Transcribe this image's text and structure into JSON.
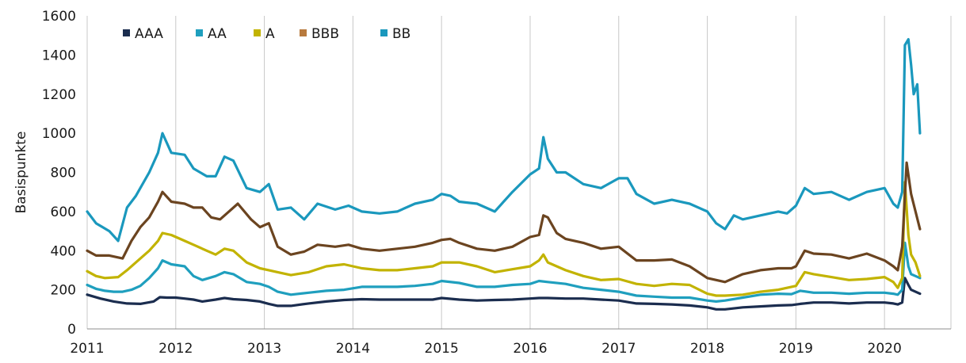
{
  "colors": {
    "AAA": "#1b2d4f",
    "AA": "#1f9fbe",
    "A": "#c2b300",
    "BBB": "#6b4420",
    "BB": "#1a98bd",
    "BBB_legend": "#b87a3d"
  },
  "chart_data": {
    "type": "line",
    "title": "",
    "xlabel": "",
    "ylabel": "Basispunkte",
    "xlim": [
      2011.0,
      2020.75
    ],
    "ylim": [
      0,
      1600
    ],
    "yticks": [
      "0",
      "200",
      "400",
      "600",
      "800",
      "1000",
      "1200",
      "1400",
      "1600"
    ],
    "xticks": [
      "2011",
      "2012",
      "2013",
      "2014",
      "2015",
      "2016",
      "2017",
      "2018",
      "2019",
      "2020"
    ],
    "grid": "vertical",
    "legend_position": "top-left",
    "legend": [
      "AAA",
      "AA",
      "A",
      "BBB",
      "BB"
    ],
    "series": [
      {
        "name": "AAA",
        "x": [
          2011.0,
          2011.15,
          2011.3,
          2011.45,
          2011.6,
          2011.75,
          2011.82,
          2011.9,
          2012.0,
          2012.1,
          2012.2,
          2012.3,
          2012.45,
          2012.55,
          2012.65,
          2012.8,
          2012.95,
          2013.05,
          2013.15,
          2013.3,
          2013.5,
          2013.7,
          2013.9,
          2014.1,
          2014.3,
          2014.5,
          2014.7,
          2014.9,
          2015.0,
          2015.2,
          2015.4,
          2015.6,
          2015.8,
          2016.0,
          2016.1,
          2016.2,
          2016.4,
          2016.6,
          2016.8,
          2017.0,
          2017.2,
          2017.4,
          2017.6,
          2017.8,
          2018.0,
          2018.1,
          2018.2,
          2018.4,
          2018.6,
          2018.8,
          2018.95,
          2019.05,
          2019.2,
          2019.4,
          2019.6,
          2019.8,
          2020.0,
          2020.1,
          2020.15,
          2020.2,
          2020.23,
          2020.27,
          2020.3,
          2020.35,
          2020.4
        ],
        "values": [
          175,
          155,
          140,
          130,
          128,
          140,
          162,
          160,
          160,
          155,
          150,
          140,
          150,
          158,
          152,
          148,
          140,
          128,
          118,
          118,
          130,
          140,
          148,
          152,
          150,
          150,
          150,
          150,
          158,
          150,
          145,
          148,
          150,
          155,
          158,
          158,
          155,
          155,
          150,
          145,
          130,
          128,
          125,
          120,
          110,
          100,
          100,
          110,
          115,
          120,
          122,
          128,
          135,
          135,
          130,
          135,
          135,
          130,
          125,
          135,
          260,
          225,
          200,
          190,
          180
        ]
      },
      {
        "name": "AA",
        "x": [
          2011.0,
          2011.1,
          2011.2,
          2011.3,
          2011.4,
          2011.5,
          2011.6,
          2011.7,
          2011.8,
          2011.85,
          2011.95,
          2012.1,
          2012.2,
          2012.3,
          2012.45,
          2012.55,
          2012.65,
          2012.8,
          2012.95,
          2013.05,
          2013.15,
          2013.3,
          2013.5,
          2013.7,
          2013.9,
          2014.1,
          2014.3,
          2014.5,
          2014.7,
          2014.9,
          2015.0,
          2015.2,
          2015.4,
          2015.6,
          2015.8,
          2016.0,
          2016.1,
          2016.2,
          2016.4,
          2016.6,
          2016.8,
          2017.0,
          2017.2,
          2017.4,
          2017.6,
          2017.8,
          2018.0,
          2018.1,
          2018.2,
          2018.4,
          2018.6,
          2018.8,
          2018.95,
          2019.05,
          2019.2,
          2019.4,
          2019.6,
          2019.8,
          2020.0,
          2020.1,
          2020.15,
          2020.2,
          2020.23,
          2020.27,
          2020.3,
          2020.35,
          2020.4
        ],
        "values": [
          225,
          205,
          195,
          190,
          190,
          200,
          220,
          260,
          310,
          350,
          330,
          320,
          270,
          250,
          270,
          290,
          280,
          240,
          230,
          215,
          190,
          175,
          185,
          195,
          200,
          215,
          215,
          215,
          220,
          230,
          245,
          235,
          215,
          215,
          225,
          230,
          245,
          240,
          230,
          210,
          200,
          190,
          170,
          165,
          160,
          160,
          145,
          140,
          145,
          160,
          175,
          180,
          178,
          195,
          185,
          185,
          180,
          185,
          185,
          180,
          175,
          200,
          440,
          320,
          280,
          270,
          260
        ]
      },
      {
        "name": "A",
        "x": [
          2011.0,
          2011.1,
          2011.2,
          2011.35,
          2011.45,
          2011.55,
          2011.7,
          2011.8,
          2011.85,
          2011.95,
          2012.1,
          2012.2,
          2012.35,
          2012.45,
          2012.55,
          2012.65,
          2012.8,
          2012.95,
          2013.05,
          2013.15,
          2013.3,
          2013.5,
          2013.7,
          2013.9,
          2014.1,
          2014.3,
          2014.5,
          2014.7,
          2014.9,
          2015.0,
          2015.2,
          2015.4,
          2015.6,
          2015.8,
          2016.0,
          2016.1,
          2016.15,
          2016.2,
          2016.4,
          2016.6,
          2016.8,
          2017.0,
          2017.2,
          2017.4,
          2017.6,
          2017.8,
          2018.0,
          2018.1,
          2018.2,
          2018.4,
          2018.6,
          2018.8,
          2018.95,
          2019.0,
          2019.1,
          2019.2,
          2019.4,
          2019.6,
          2019.8,
          2020.0,
          2020.1,
          2020.15,
          2020.2,
          2020.23,
          2020.27,
          2020.3,
          2020.35,
          2020.4
        ],
        "values": [
          295,
          270,
          260,
          265,
          300,
          340,
          400,
          450,
          490,
          480,
          450,
          430,
          400,
          380,
          410,
          400,
          340,
          310,
          300,
          290,
          275,
          290,
          320,
          330,
          310,
          300,
          300,
          310,
          320,
          340,
          340,
          320,
          290,
          305,
          320,
          350,
          380,
          340,
          300,
          270,
          250,
          255,
          230,
          220,
          230,
          225,
          180,
          170,
          170,
          175,
          190,
          200,
          215,
          220,
          290,
          280,
          265,
          250,
          255,
          265,
          240,
          210,
          260,
          750,
          480,
          380,
          340,
          270
        ]
      },
      {
        "name": "BBB",
        "x": [
          2011.0,
          2011.1,
          2011.25,
          2011.4,
          2011.5,
          2011.6,
          2011.7,
          2011.8,
          2011.85,
          2011.95,
          2012.1,
          2012.2,
          2012.3,
          2012.4,
          2012.5,
          2012.6,
          2012.7,
          2012.85,
          2012.95,
          2013.05,
          2013.15,
          2013.3,
          2013.45,
          2013.6,
          2013.8,
          2013.95,
          2014.1,
          2014.3,
          2014.5,
          2014.7,
          2014.9,
          2015.0,
          2015.1,
          2015.2,
          2015.4,
          2015.6,
          2015.8,
          2016.0,
          2016.1,
          2016.15,
          2016.2,
          2016.3,
          2016.4,
          2016.6,
          2016.8,
          2017.0,
          2017.2,
          2017.4,
          2017.6,
          2017.8,
          2018.0,
          2018.1,
          2018.2,
          2018.4,
          2018.6,
          2018.8,
          2018.95,
          2019.0,
          2019.1,
          2019.2,
          2019.4,
          2019.6,
          2019.8,
          2020.0,
          2020.1,
          2020.15,
          2020.2,
          2020.25,
          2020.3,
          2020.35,
          2020.4
        ],
        "values": [
          400,
          375,
          375,
          360,
          450,
          520,
          570,
          650,
          700,
          650,
          640,
          620,
          620,
          570,
          560,
          600,
          640,
          560,
          520,
          540,
          420,
          380,
          395,
          430,
          420,
          430,
          410,
          400,
          410,
          420,
          440,
          455,
          460,
          440,
          410,
          400,
          420,
          470,
          480,
          580,
          570,
          490,
          460,
          440,
          410,
          420,
          350,
          350,
          355,
          320,
          260,
          250,
          240,
          280,
          300,
          310,
          310,
          320,
          400,
          385,
          380,
          360,
          385,
          350,
          320,
          300,
          420,
          850,
          690,
          600,
          510
        ]
      },
      {
        "name": "BB",
        "x": [
          2011.0,
          2011.1,
          2011.25,
          2011.35,
          2011.45,
          2011.55,
          2011.7,
          2011.8,
          2011.85,
          2011.95,
          2012.1,
          2012.2,
          2012.35,
          2012.45,
          2012.55,
          2012.65,
          2012.8,
          2012.95,
          2013.05,
          2013.15,
          2013.3,
          2013.45,
          2013.6,
          2013.8,
          2013.95,
          2014.1,
          2014.3,
          2014.5,
          2014.7,
          2014.9,
          2015.0,
          2015.1,
          2015.2,
          2015.4,
          2015.6,
          2015.8,
          2016.0,
          2016.1,
          2016.15,
          2016.2,
          2016.3,
          2016.4,
          2016.6,
          2016.8,
          2017.0,
          2017.1,
          2017.2,
          2017.4,
          2017.6,
          2017.8,
          2018.0,
          2018.1,
          2018.2,
          2018.3,
          2018.4,
          2018.6,
          2018.8,
          2018.9,
          2019.0,
          2019.1,
          2019.2,
          2019.4,
          2019.6,
          2019.8,
          2020.0,
          2020.1,
          2020.15,
          2020.2,
          2020.23,
          2020.27,
          2020.3,
          2020.33,
          2020.37,
          2020.4
        ],
        "values": [
          600,
          540,
          500,
          450,
          620,
          680,
          800,
          900,
          1000,
          900,
          890,
          820,
          780,
          780,
          880,
          860,
          720,
          700,
          740,
          610,
          620,
          560,
          640,
          610,
          630,
          600,
          590,
          600,
          640,
          660,
          690,
          680,
          650,
          640,
          600,
          700,
          790,
          820,
          980,
          870,
          800,
          800,
          740,
          720,
          770,
          770,
          690,
          640,
          660,
          640,
          600,
          540,
          510,
          580,
          560,
          580,
          600,
          590,
          630,
          720,
          690,
          700,
          660,
          700,
          720,
          640,
          620,
          700,
          1450,
          1480,
          1350,
          1200,
          1250,
          1000
        ]
      }
    ]
  }
}
